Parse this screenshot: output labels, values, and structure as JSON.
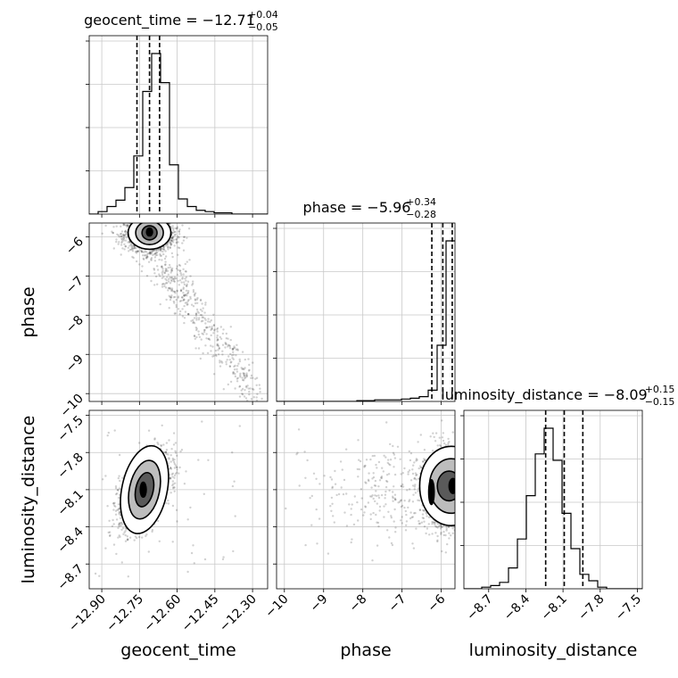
{
  "chart_data": {
    "type": "corner",
    "parameters": [
      {
        "key": "geocent_time",
        "label": "geocent_time",
        "title": "geocent_time = −12.71",
        "sup": "+0.04",
        "sub": "−0.05",
        "range": [
          -12.95,
          -12.24
        ],
        "ticks": [
          -12.9,
          -12.75,
          -12.6,
          -12.45,
          -12.3
        ],
        "tick_labels": [
          "−12.90",
          "−12.75",
          "−12.60",
          "−12.45",
          "−12.30"
        ],
        "quantiles": [
          -12.76,
          -12.71,
          -12.67
        ]
      },
      {
        "key": "phase",
        "label": "phase",
        "title": "phase = −5.96",
        "sup": "+0.34",
        "sub": "−0.28",
        "range": [
          -10.2,
          -5.65
        ],
        "ticks": [
          -10,
          -9,
          -8,
          -7,
          -6
        ],
        "tick_labels": [
          "−10",
          "−9",
          "−8",
          "−7",
          "−6"
        ],
        "quantiles": [
          -6.24,
          -5.96,
          -5.72
        ]
      },
      {
        "key": "luminosity_distance",
        "label": "luminosity_distance",
        "title": "luminosity_distance = −8.09",
        "sup": "+0.15",
        "sub": "−0.15",
        "range": [
          -8.9,
          -7.46
        ],
        "ticks": [
          -8.7,
          -8.4,
          -8.1,
          -7.8,
          -7.5
        ],
        "tick_labels": [
          "−8.7",
          "−8.4",
          "−8.1",
          "−7.8",
          "−7.5"
        ],
        "quantiles": [
          -8.24,
          -8.09,
          -7.94
        ]
      }
    ],
    "histograms": [
      {
        "param": "geocent_time",
        "bin_width": 0.0355,
        "counts": [
          0,
          2,
          6,
          11,
          21,
          46,
          97,
          127,
          104,
          39,
          12,
          6,
          3,
          2,
          1,
          1,
          0,
          0,
          0,
          0
        ]
      },
      {
        "param": "phase",
        "bin_width": 0.2275,
        "counts": [
          0,
          0,
          0,
          0,
          0,
          0,
          0,
          0,
          0,
          0.5,
          0.5,
          1,
          1,
          1,
          1.5,
          2,
          3,
          7,
          35,
          100
        ]
      },
      {
        "param": "luminosity_distance",
        "bin_width": 0.072,
        "counts": [
          0,
          0,
          1,
          2,
          4,
          13,
          31,
          58,
          84,
          100,
          80,
          47,
          25,
          9,
          5,
          1,
          0,
          0,
          0,
          0
        ]
      }
    ],
    "grid": true,
    "legend": "none"
  }
}
